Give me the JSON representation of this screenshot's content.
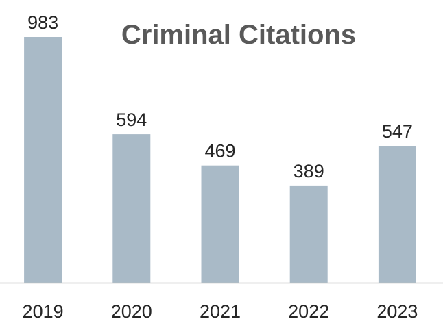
{
  "chart_data": {
    "type": "bar",
    "title": "Criminal Citations",
    "categories": [
      "2019",
      "2020",
      "2021",
      "2022",
      "2023"
    ],
    "values": [
      983,
      594,
      469,
      389,
      547
    ],
    "xlabel": "",
    "ylabel": "",
    "ylim": [
      0,
      983
    ],
    "grid": false,
    "legend": "none",
    "data_labels": true,
    "colors": {
      "bar": "#a9bac7",
      "axis": "#bfbfbf",
      "title": "#595959",
      "text": "#262626"
    }
  }
}
